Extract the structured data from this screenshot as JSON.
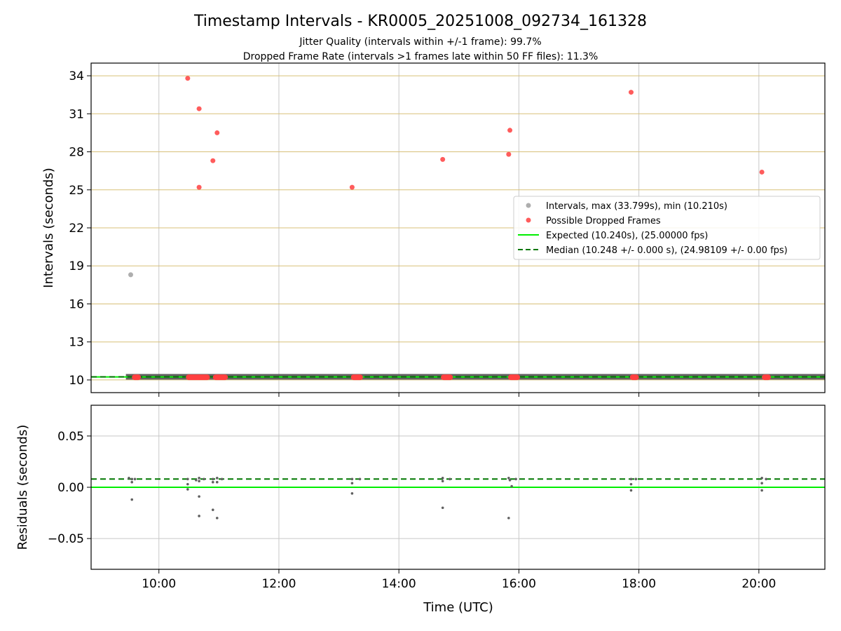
{
  "title": "Timestamp Intervals - KR0005_20251008_092734_161328",
  "subtitle_1": "Jitter Quality (intervals within +/-1 frame): 99.7%",
  "subtitle_2": "Dropped Frame Rate (intervals >1 frames late within 50 FF files): 11.3%",
  "colors": {
    "intervals": "#a0a0a0",
    "dropped": "#ff4040",
    "expected": "#00ee00",
    "median": "#007700",
    "hgrid_top": "#d8c078",
    "grid": "#c8c8c8",
    "baseline": "#505050"
  },
  "chart_data": [
    {
      "type": "scatter",
      "xlabel": "",
      "ylabel": "Intervals (seconds)",
      "xlim": [
        8.87,
        21.1
      ],
      "ylim": [
        9.0,
        35.0
      ],
      "yticks": [
        10,
        13,
        16,
        19,
        22,
        25,
        28,
        31,
        34
      ],
      "ytick_labels": [
        "10",
        "13",
        "16",
        "19",
        "22",
        "25",
        "28",
        "31",
        "34"
      ],
      "xticks": [
        10,
        12,
        14,
        16,
        18,
        20
      ],
      "grid": true,
      "legend_position": "center-right",
      "legend": [
        "Intervals, max (33.799s), min (10.210s)",
        "Possible Dropped Frames",
        "Expected (10.240s), (25.00000 fps)",
        "Median (10.248 +/- 0.000 s), (24.98109 +/- 0.00 fps)"
      ],
      "expected_y": 10.24,
      "median_y": 10.248,
      "series": [
        {
          "name": "Intervals, max (33.799s), min (10.210s)",
          "points": [
            [
              9.53,
              18.3
            ]
          ],
          "band": {
            "x_start": 9.45,
            "x_end": 21.1,
            "y": 10.25
          }
        },
        {
          "name": "Possible Dropped Frames",
          "points": [
            [
              10.48,
              33.8
            ],
            [
              10.67,
              31.4
            ],
            [
              10.97,
              29.5
            ],
            [
              10.9,
              27.3
            ],
            [
              10.67,
              25.2
            ],
            [
              13.22,
              25.2
            ],
            [
              14.73,
              27.4
            ],
            [
              15.85,
              29.7
            ],
            [
              15.83,
              27.8
            ],
            [
              17.87,
              32.7
            ],
            [
              20.05,
              26.4
            ]
          ],
          "clusters": [
            [
              9.55,
              9.7
            ],
            [
              10.45,
              10.85
            ],
            [
              10.9,
              11.15
            ],
            [
              13.2,
              13.4
            ],
            [
              14.7,
              14.9
            ],
            [
              15.82,
              16.02
            ],
            [
              17.85,
              18.0
            ],
            [
              20.05,
              20.2
            ]
          ],
          "cluster_y": 10.21
        }
      ]
    },
    {
      "type": "scatter",
      "xlabel": "Time (UTC)",
      "ylabel": "Residuals (seconds)",
      "xlim": [
        8.87,
        21.1
      ],
      "ylim": [
        -0.08,
        0.08
      ],
      "yticks": [
        -0.05,
        0.0,
        0.05
      ],
      "ytick_labels": [
        "−0.05",
        "0.00",
        "0.05"
      ],
      "xticks": [
        10,
        12,
        14,
        16,
        18,
        20
      ],
      "xtick_labels": [
        "10:00",
        "12:00",
        "14:00",
        "16:00",
        "18:00",
        "20:00"
      ],
      "grid": true,
      "expected_y": 0.0,
      "median_y": 0.008,
      "series": [
        {
          "name": "",
          "points": [
            [
              9.5,
              0.009
            ],
            [
              9.55,
              0.008
            ],
            [
              9.55,
              0.005
            ],
            [
              9.55,
              -0.012
            ],
            [
              9.6,
              0.008
            ],
            [
              10.48,
              0.008
            ],
            [
              10.48,
              0.003
            ],
            [
              10.48,
              -0.002
            ],
            [
              10.62,
              0.007
            ],
            [
              10.67,
              0.009
            ],
            [
              10.67,
              0.006
            ],
            [
              10.67,
              -0.009
            ],
            [
              10.67,
              -0.028
            ],
            [
              10.75,
              0.008
            ],
            [
              10.9,
              0.008
            ],
            [
              10.9,
              0.005
            ],
            [
              10.9,
              -0.022
            ],
            [
              10.97,
              0.009
            ],
            [
              10.97,
              0.005
            ],
            [
              10.97,
              -0.03
            ],
            [
              11.05,
              0.008
            ],
            [
              13.22,
              0.008
            ],
            [
              13.22,
              0.004
            ],
            [
              13.22,
              -0.006
            ],
            [
              13.35,
              0.008
            ],
            [
              14.73,
              0.009
            ],
            [
              14.73,
              0.006
            ],
            [
              14.73,
              -0.02
            ],
            [
              14.85,
              0.008
            ],
            [
              15.83,
              0.009
            ],
            [
              15.85,
              0.007
            ],
            [
              15.88,
              0.001
            ],
            [
              15.83,
              -0.03
            ],
            [
              15.95,
              0.008
            ],
            [
              17.87,
              0.008
            ],
            [
              17.87,
              0.003
            ],
            [
              17.87,
              -0.003
            ],
            [
              17.95,
              0.008
            ],
            [
              20.05,
              0.009
            ],
            [
              20.05,
              0.004
            ],
            [
              20.05,
              -0.003
            ],
            [
              20.12,
              0.008
            ]
          ]
        }
      ]
    }
  ]
}
